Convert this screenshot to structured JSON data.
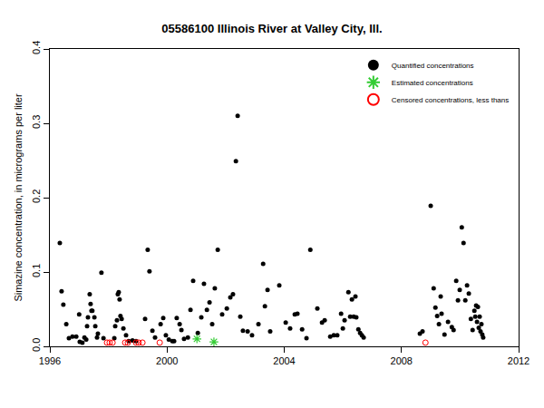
{
  "chart_data": {
    "type": "scatter",
    "title": "05586100 Illinois River at Valley City, Ill.",
    "y_label": "Simazine concentration, in micrograms per liter",
    "xlim": [
      1996,
      2012
    ],
    "xticks": [
      1996,
      2000,
      2004,
      2008,
      2012
    ],
    "ylim": [
      0,
      0.4
    ],
    "yticks": [
      {
        "value": 0,
        "label": "0.0"
      },
      0.1,
      0.2,
      0.3,
      0.4
    ],
    "grid": false,
    "legend": "top-right",
    "series": [
      {
        "name": "Quantified concentrations",
        "color": "#000000",
        "marker": "dot",
        "x": [
          1996.34,
          1996.4,
          1996.46,
          1996.56,
          1996.65,
          1996.77,
          1996.9,
          1997.0,
          1997.02,
          1997.11,
          1997.18,
          1997.24,
          1997.27,
          1997.3,
          1997.36,
          1997.39,
          1997.42,
          1997.45,
          1997.52,
          1997.55,
          1997.61,
          1997.64,
          1997.76,
          1997.83,
          1998.2,
          1998.23,
          1998.29,
          1998.32,
          1998.35,
          1998.38,
          1998.41,
          1998.45,
          1998.51,
          1998.6,
          1998.69,
          1998.82,
          1998.94,
          1999.25,
          1999.34,
          1999.4,
          1999.5,
          1999.59,
          1999.78,
          1999.87,
          1999.96,
          2000.06,
          2000.18,
          2000.24,
          2000.33,
          2000.43,
          2000.49,
          2000.58,
          2000.71,
          2000.8,
          2000.89,
          2001.05,
          2001.17,
          2001.26,
          2001.36,
          2001.45,
          2001.54,
          2001.63,
          2001.73,
          2001.88,
          2002.04,
          2002.16,
          2002.25,
          2002.35,
          2002.41,
          2002.5,
          2002.59,
          2002.75,
          2002.9,
          2003.12,
          2003.28,
          2003.34,
          2003.43,
          2003.52,
          2003.83,
          2004.05,
          2004.2,
          2004.36,
          2004.45,
          2004.61,
          2004.76,
          2004.89,
          2005.13,
          2005.29,
          2005.38,
          2005.57,
          2005.69,
          2005.81,
          2005.94,
          2006.0,
          2006.06,
          2006.19,
          2006.25,
          2006.31,
          2006.37,
          2006.43,
          2006.46,
          2006.53,
          2006.59,
          2006.65,
          2006.71,
          2008.63,
          2008.72,
          2009.0,
          2009.1,
          2009.16,
          2009.22,
          2009.28,
          2009.34,
          2009.37,
          2009.47,
          2009.59,
          2009.72,
          2009.78,
          2009.87,
          2009.93,
          2009.99,
          2010.06,
          2010.12,
          2010.18,
          2010.24,
          2010.3,
          2010.37,
          2010.43,
          2010.49,
          2010.52,
          2010.55,
          2010.58,
          2010.61,
          2010.64,
          2010.67,
          2010.7,
          2010.73,
          2010.76,
          2010.79
        ],
        "values": [
          0.139,
          0.074,
          0.056,
          0.03,
          0.011,
          0.013,
          0.013,
          0.043,
          0.006,
          0.005,
          0.012,
          0.009,
          0.027,
          0.039,
          0.07,
          0.057,
          0.048,
          0.048,
          0.039,
          0.027,
          0.012,
          0.017,
          0.099,
          0.011,
          0.011,
          0.027,
          0.035,
          0.07,
          0.073,
          0.063,
          0.041,
          0.037,
          0.024,
          0.015,
          0.007,
          0.008,
          0.007,
          0.037,
          0.13,
          0.101,
          0.021,
          0.012,
          0.03,
          0.038,
          0.015,
          0.009,
          0.007,
          0.007,
          0.038,
          0.03,
          0.022,
          0.01,
          0.012,
          0.049,
          0.088,
          0.018,
          0.039,
          0.084,
          0.049,
          0.059,
          0.03,
          0.078,
          0.13,
          0.043,
          0.051,
          0.066,
          0.07,
          0.249,
          0.31,
          0.04,
          0.021,
          0.02,
          0.015,
          0.03,
          0.111,
          0.054,
          0.076,
          0.02,
          0.082,
          0.032,
          0.024,
          0.043,
          0.044,
          0.023,
          0.011,
          0.13,
          0.051,
          0.032,
          0.035,
          0.013,
          0.015,
          0.015,
          0.044,
          0.024,
          0.035,
          0.073,
          0.04,
          0.063,
          0.04,
          0.067,
          0.039,
          0.023,
          0.018,
          0.015,
          0.012,
          0.017,
          0.02,
          0.189,
          0.078,
          0.052,
          0.041,
          0.03,
          0.067,
          0.044,
          0.016,
          0.033,
          0.026,
          0.022,
          0.088,
          0.062,
          0.076,
          0.16,
          0.139,
          0.062,
          0.082,
          0.071,
          0.037,
          0.022,
          0.048,
          0.04,
          0.055,
          0.033,
          0.053,
          0.025,
          0.04,
          0.02,
          0.03,
          0.016,
          0.012
        ]
      },
      {
        "name": "Estimated concentrations",
        "color": "#33cc33",
        "marker": "asterisk",
        "x": [
          2001.02,
          2001.6
        ],
        "values": [
          0.01,
          0.006
        ]
      },
      {
        "name": "Censored concentrations, less thans",
        "color": "#ff0000",
        "marker": "circle-open",
        "x": [
          1997.95,
          1998.04,
          1998.14,
          1998.57,
          1998.66,
          1998.94,
          1999.03,
          1999.16,
          1999.75,
          2008.82
        ],
        "values": [
          0.005,
          0.005,
          0.005,
          0.005,
          0.005,
          0.005,
          0.005,
          0.005,
          0.005,
          0.005
        ]
      }
    ]
  }
}
